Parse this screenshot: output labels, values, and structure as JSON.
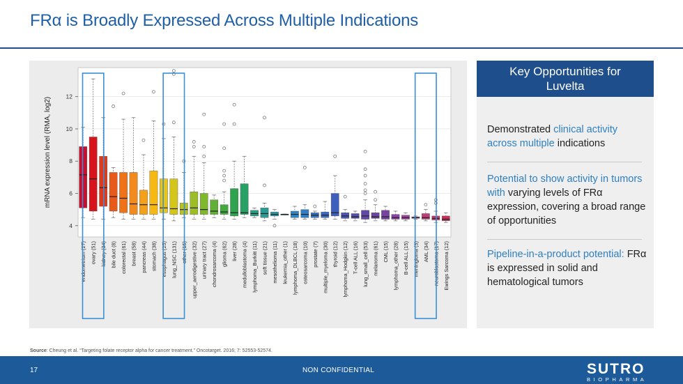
{
  "slide": {
    "title": "FRα is Broadly Expressed Across Multiple Indications",
    "page_number": "17",
    "confidentiality": "NON CONFIDENTIAL",
    "source_label": "Source",
    "source_text": ": Cheung et al. “Targeting folate receptor alpha for cancer treatment.” Oncotarget. 2016; 7: 52553-52574.",
    "logo_line1": "SUTRO",
    "logo_line2": "BIOPHARMA",
    "colors": {
      "brand_blue": "#1f4e8c",
      "accent": "#2e7fc2",
      "highlight_box": "#3a8fd6"
    }
  },
  "panel": {
    "header": "Key Opportunities for Luvelta",
    "items": [
      {
        "pre": "Demonstrated ",
        "hl": "clinical activity across multiple",
        "post": " indications"
      },
      {
        "pre": "",
        "hl": "Potential to show activity in tumors with",
        "post": " varying levels of FRα expression, covering a broad range of opportunities"
      },
      {
        "pre": "",
        "hl": "Pipeline-in-a-product potential:",
        "post": " FRα is expressed in solid and hematological tumors"
      }
    ]
  },
  "chart_data": {
    "type": "box",
    "ylabel": "mRNA expression level (RMA, log2)",
    "ylim": [
      3.3,
      13.8
    ],
    "yticks": [
      4,
      6,
      8,
      10,
      12
    ],
    "highlighted": [
      "ovary (51)",
      "lung_NSC (131)",
      "AML (34)"
    ],
    "categories": [
      {
        "label": "endometrium (27)",
        "q1": 5.1,
        "median": 7.15,
        "q3": 8.9,
        "wlo": 4.5,
        "whi": 10.1,
        "color": "#c8102e",
        "outliers": []
      },
      {
        "label": "ovary (51)",
        "q1": 4.9,
        "median": 6.9,
        "q3": 9.5,
        "wlo": 4.4,
        "whi": 13.1,
        "color": "#d7141c",
        "outliers": []
      },
      {
        "label": "kidney (34)",
        "q1": 5.2,
        "median": 6.35,
        "q3": 8.3,
        "wlo": 4.4,
        "whi": 10.7,
        "color": "#e03a1a",
        "outliers": []
      },
      {
        "label": "bile duct (8)",
        "q1": 4.9,
        "median": 5.8,
        "q3": 7.3,
        "wlo": 4.5,
        "whi": 7.6,
        "color": "#e85a1a",
        "outliers": [
          11.4
        ]
      },
      {
        "label": "colorectal (61)",
        "q1": 4.8,
        "median": 5.7,
        "q3": 7.3,
        "wlo": 4.4,
        "whi": 10.6,
        "color": "#ee7318",
        "outliers": [
          12.2
        ]
      },
      {
        "label": "breast (58)",
        "q1": 4.7,
        "median": 5.35,
        "q3": 7.3,
        "wlo": 4.4,
        "whi": 10.7,
        "color": "#f28a1e",
        "outliers": []
      },
      {
        "label": "pancreas (44)",
        "q1": 4.7,
        "median": 5.3,
        "q3": 6.2,
        "wlo": 4.4,
        "whi": 8.4,
        "color": "#f5a019",
        "outliers": [
          9.3
        ]
      },
      {
        "label": "stomach (38)",
        "q1": 4.7,
        "median": 5.3,
        "q3": 7.4,
        "wlo": 4.4,
        "whi": 10.5,
        "color": "#f6b914",
        "outliers": [
          12.3
        ]
      },
      {
        "label": "esophagus (25)",
        "q1": 4.8,
        "median": 5.1,
        "q3": 6.9,
        "wlo": 4.4,
        "whi": 9.4,
        "color": "#e8c417",
        "outliers": [
          10.3
        ]
      },
      {
        "label": "lung_NSC (131)",
        "q1": 4.7,
        "median": 5.05,
        "q3": 6.9,
        "wlo": 4.3,
        "whi": 9.5,
        "color": "#d4c51b",
        "outliers": [
          10.4,
          13.4,
          13.6
        ]
      },
      {
        "label": "other (15)",
        "q1": 4.7,
        "median": 5.0,
        "q3": 5.4,
        "wlo": 4.5,
        "whi": 7.3,
        "color": "#b9c21f",
        "outliers": [
          8.0
        ]
      },
      {
        "label": "upper_aerodigestive (32)",
        "q1": 4.7,
        "median": 5.1,
        "q3": 6.1,
        "wlo": 4.4,
        "whi": 8.3,
        "color": "#9dbd26",
        "outliers": [
          8.9,
          9.2
        ]
      },
      {
        "label": "urinary tract (27)",
        "q1": 4.7,
        "median": 5.0,
        "q3": 6.0,
        "wlo": 4.4,
        "whi": 7.9,
        "color": "#7fb72d",
        "outliers": [
          8.3,
          8.9,
          10.9
        ]
      },
      {
        "label": "chondrosarcoma (4)",
        "q1": 4.7,
        "median": 4.9,
        "q3": 5.6,
        "wlo": 4.5,
        "whi": 5.9,
        "color": "#60b035",
        "outliers": []
      },
      {
        "label": "glioma (62)",
        "q1": 4.7,
        "median": 4.85,
        "q3": 5.3,
        "wlo": 4.4,
        "whi": 6.1,
        "color": "#43a83e",
        "outliers": [
          6.8,
          7.1,
          7.4,
          8.8,
          10.3
        ]
      },
      {
        "label": "liver (28)",
        "q1": 4.6,
        "median": 4.8,
        "q3": 6.3,
        "wlo": 4.4,
        "whi": 8.0,
        "color": "#2fa34e",
        "outliers": [
          10.3,
          11.5
        ]
      },
      {
        "label": "medulloblastoma (4)",
        "q1": 4.7,
        "median": 4.8,
        "q3": 6.6,
        "wlo": 4.5,
        "whi": 8.3,
        "color": "#29a065",
        "outliers": []
      },
      {
        "label": "lymphoma_Burkitt (11)",
        "q1": 4.6,
        "median": 4.75,
        "q3": 4.95,
        "wlo": 4.5,
        "whi": 5.1,
        "color": "#289d80",
        "outliers": []
      },
      {
        "label": "soft tissue (21)",
        "q1": 4.5,
        "median": 4.75,
        "q3": 5.1,
        "wlo": 4.3,
        "whi": 5.4,
        "color": "#289b95",
        "outliers": [
          6.5,
          10.7
        ]
      },
      {
        "label": "mesothelioma (11)",
        "q1": 4.6,
        "median": 4.7,
        "q3": 4.85,
        "wlo": 4.4,
        "whi": 5.0,
        "color": "#2996a8",
        "outliers": [
          4.0
        ]
      },
      {
        "label": "leukemia_other (1)",
        "q1": 4.68,
        "median": 4.7,
        "q3": 4.72,
        "wlo": 4.68,
        "whi": 4.72,
        "color": "#2b8fba",
        "outliers": []
      },
      {
        "label": "lymphoma_DLBCL (18)",
        "q1": 4.5,
        "median": 4.7,
        "q3": 4.9,
        "wlo": 4.4,
        "whi": 5.2,
        "color": "#2d87c4",
        "outliers": []
      },
      {
        "label": "osteosarcoma (10)",
        "q1": 4.5,
        "median": 4.7,
        "q3": 5.0,
        "wlo": 4.4,
        "whi": 5.3,
        "color": "#307ec6",
        "outliers": [
          7.6
        ]
      },
      {
        "label": "prostate (7)",
        "q1": 4.5,
        "median": 4.65,
        "q3": 4.8,
        "wlo": 4.4,
        "whi": 4.9,
        "color": "#3474c4",
        "outliers": [
          5.2
        ]
      },
      {
        "label": "multiple_myeloma (30)",
        "q1": 4.5,
        "median": 4.65,
        "q3": 4.85,
        "wlo": 4.4,
        "whi": 5.5,
        "color": "#386bc0",
        "outliers": []
      },
      {
        "label": "thyroid (12)",
        "q1": 4.6,
        "median": 4.8,
        "q3": 6.0,
        "wlo": 4.4,
        "whi": 7.1,
        "color": "#3e5fbb",
        "outliers": [
          8.3
        ]
      },
      {
        "label": "lymphoma_Hodgkin (12)",
        "q1": 4.45,
        "median": 4.6,
        "q3": 4.8,
        "wlo": 4.3,
        "whi": 5.0,
        "color": "#4956b5",
        "outliers": [
          5.8
        ]
      },
      {
        "label": "T-cell ALL (16)",
        "q1": 4.45,
        "median": 4.55,
        "q3": 4.75,
        "wlo": 4.3,
        "whi": 4.9,
        "color": "#564fae",
        "outliers": []
      },
      {
        "label": "lung_small_cell (53)",
        "q1": 4.4,
        "median": 4.6,
        "q3": 4.95,
        "wlo": 4.2,
        "whi": 5.6,
        "color": "#6249a8",
        "outliers": [
          6.0,
          6.2,
          6.6,
          7.1,
          7.5,
          8.6
        ]
      },
      {
        "label": "melanoma (61)",
        "q1": 4.45,
        "median": 4.55,
        "q3": 4.8,
        "wlo": 4.3,
        "whi": 5.3,
        "color": "#6b46a3",
        "outliers": [
          5.6,
          6.1
        ]
      },
      {
        "label": "CML (15)",
        "q1": 4.4,
        "median": 4.55,
        "q3": 4.95,
        "wlo": 4.3,
        "whi": 5.2,
        "color": "#7844a2",
        "outliers": []
      },
      {
        "label": "lymphoma_other (28)",
        "q1": 4.4,
        "median": 4.5,
        "q3": 4.7,
        "wlo": 4.3,
        "whi": 4.9,
        "color": "#8a44a4",
        "outliers": []
      },
      {
        "label": "B-cell ALL (15)",
        "q1": 4.4,
        "median": 4.5,
        "q3": 4.65,
        "wlo": 4.3,
        "whi": 4.8,
        "color": "#9f439e",
        "outliers": []
      },
      {
        "label": "meningioma (3)",
        "q1": 4.45,
        "median": 4.5,
        "q3": 4.55,
        "wlo": 4.4,
        "whi": 4.6,
        "color": "#b04492",
        "outliers": []
      },
      {
        "label": "AML (34)",
        "q1": 4.4,
        "median": 4.5,
        "q3": 4.75,
        "wlo": 4.3,
        "whi": 5.0,
        "color": "#bc3f7c",
        "outliers": [
          5.3
        ]
      },
      {
        "label": "neuroblastoma (17)",
        "q1": 4.35,
        "median": 4.45,
        "q3": 4.6,
        "wlo": 4.2,
        "whi": 4.9,
        "color": "#c2396a",
        "outliers": [
          5.4,
          5.6
        ]
      },
      {
        "label": "Ewings Sarcoma (12)",
        "q1": 4.3,
        "median": 4.4,
        "q3": 4.6,
        "wlo": 4.2,
        "whi": 4.8,
        "color": "#c6305a",
        "outliers": []
      }
    ]
  }
}
